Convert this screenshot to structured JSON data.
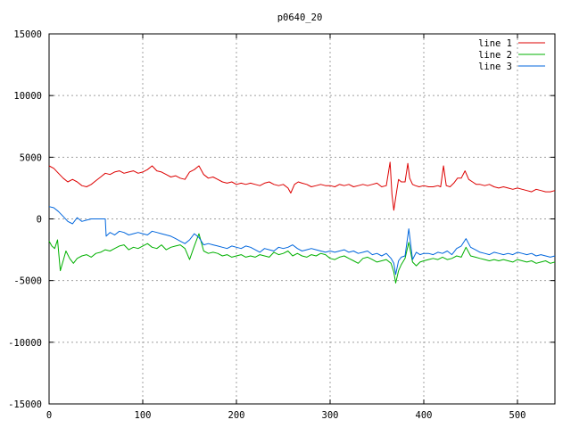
{
  "chart_data": {
    "type": "line",
    "title": "p0640_20",
    "xlabel": "",
    "ylabel": "",
    "xlim": [
      0,
      540
    ],
    "ylim": [
      -15000,
      15000
    ],
    "xticks": [
      0,
      100,
      200,
      300,
      400,
      500
    ],
    "yticks": [
      -15000,
      -10000,
      -5000,
      0,
      5000,
      10000,
      15000
    ],
    "grid": true,
    "legend_position": "top-right",
    "series": [
      {
        "name": "line 1",
        "color": "#dd0000",
        "x": [
          0,
          5,
          10,
          15,
          20,
          25,
          30,
          35,
          40,
          45,
          50,
          55,
          60,
          65,
          70,
          75,
          80,
          85,
          90,
          95,
          100,
          105,
          110,
          115,
          120,
          125,
          130,
          135,
          140,
          145,
          150,
          155,
          160,
          165,
          170,
          175,
          180,
          185,
          190,
          195,
          200,
          205,
          210,
          215,
          220,
          225,
          230,
          235,
          240,
          245,
          250,
          255,
          258,
          262,
          266,
          270,
          275,
          280,
          285,
          290,
          295,
          300,
          305,
          310,
          315,
          320,
          325,
          330,
          335,
          340,
          345,
          350,
          355,
          360,
          364,
          366,
          368,
          371,
          373,
          376,
          380,
          383,
          385,
          388,
          391,
          395,
          400,
          405,
          410,
          415,
          418,
          421,
          424,
          428,
          432,
          436,
          440,
          444,
          448,
          452,
          456,
          460,
          465,
          470,
          475,
          480,
          485,
          490,
          495,
          500,
          505,
          510,
          515,
          520,
          525,
          530,
          535,
          540
        ],
        "values": [
          4300,
          4100,
          3700,
          3300,
          3000,
          3200,
          3000,
          2700,
          2600,
          2800,
          3100,
          3400,
          3700,
          3600,
          3800,
          3900,
          3700,
          3800,
          3900,
          3700,
          3800,
          4000,
          4300,
          3900,
          3800,
          3600,
          3400,
          3500,
          3300,
          3200,
          3800,
          4000,
          4300,
          3600,
          3300,
          3400,
          3200,
          3000,
          2900,
          3000,
          2800,
          2900,
          2800,
          2900,
          2800,
          2700,
          2900,
          3000,
          2800,
          2700,
          2800,
          2500,
          2100,
          2800,
          3000,
          2900,
          2800,
          2600,
          2700,
          2800,
          2700,
          2700,
          2600,
          2800,
          2700,
          2800,
          2600,
          2700,
          2800,
          2700,
          2800,
          2900,
          2600,
          2700,
          4600,
          2000,
          700,
          2200,
          3200,
          3000,
          3000,
          4500,
          3300,
          2800,
          2700,
          2600,
          2700,
          2600,
          2600,
          2700,
          2600,
          4300,
          2700,
          2600,
          2900,
          3300,
          3300,
          3900,
          3200,
          3000,
          2800,
          2800,
          2700,
          2800,
          2600,
          2500,
          2600,
          2500,
          2400,
          2500,
          2400,
          2300,
          2200,
          2400,
          2300,
          2200,
          2200,
          2300
        ]
      },
      {
        "name": "line 2",
        "color": "#00b000",
        "x": [
          0,
          3,
          6,
          9,
          12,
          15,
          18,
          22,
          26,
          30,
          35,
          40,
          45,
          50,
          55,
          60,
          65,
          70,
          75,
          80,
          85,
          90,
          95,
          100,
          105,
          110,
          115,
          120,
          125,
          130,
          135,
          140,
          145,
          150,
          155,
          160,
          165,
          170,
          175,
          180,
          185,
          190,
          195,
          200,
          205,
          210,
          215,
          220,
          225,
          230,
          235,
          240,
          245,
          250,
          255,
          260,
          265,
          270,
          275,
          280,
          285,
          290,
          295,
          300,
          305,
          310,
          315,
          320,
          325,
          330,
          335,
          340,
          345,
          350,
          355,
          360,
          365,
          368,
          370,
          373,
          376,
          380,
          384,
          388,
          392,
          396,
          400,
          405,
          410,
          415,
          420,
          425,
          430,
          435,
          440,
          445,
          450,
          455,
          460,
          465,
          470,
          475,
          480,
          485,
          490,
          495,
          500,
          505,
          510,
          515,
          520,
          525,
          530,
          535,
          540
        ],
        "values": [
          -1800,
          -2200,
          -2400,
          -1700,
          -4200,
          -3400,
          -2600,
          -3200,
          -3600,
          -3200,
          -3000,
          -2900,
          -3100,
          -2800,
          -2700,
          -2500,
          -2600,
          -2400,
          -2200,
          -2100,
          -2500,
          -2300,
          -2400,
          -2200,
          -2000,
          -2300,
          -2400,
          -2100,
          -2500,
          -2300,
          -2200,
          -2100,
          -2400,
          -3300,
          -2200,
          -1200,
          -2600,
          -2800,
          -2700,
          -2800,
          -3000,
          -2900,
          -3100,
          -3000,
          -2900,
          -3100,
          -3000,
          -3100,
          -2900,
          -3000,
          -3100,
          -2700,
          -2900,
          -2800,
          -2600,
          -3000,
          -2800,
          -3000,
          -3100,
          -2900,
          -3000,
          -2800,
          -2900,
          -3200,
          -3300,
          -3100,
          -3000,
          -3200,
          -3400,
          -3600,
          -3200,
          -3100,
          -3300,
          -3500,
          -3400,
          -3300,
          -3600,
          -4300,
          -5200,
          -4200,
          -3700,
          -3200,
          -1900,
          -3500,
          -3800,
          -3500,
          -3400,
          -3300,
          -3200,
          -3300,
          -3100,
          -3300,
          -3200,
          -3000,
          -3100,
          -2300,
          -3000,
          -3100,
          -3200,
          -3300,
          -3400,
          -3300,
          -3400,
          -3300,
          -3400,
          -3500,
          -3300,
          -3400,
          -3500,
          -3400,
          -3600,
          -3500,
          -3400,
          -3600,
          -3500
        ]
      },
      {
        "name": "line 3",
        "color": "#0066dd",
        "x": [
          0,
          5,
          10,
          15,
          20,
          25,
          30,
          35,
          40,
          45,
          50,
          55,
          60,
          61,
          65,
          70,
          75,
          80,
          85,
          90,
          95,
          100,
          105,
          110,
          115,
          120,
          125,
          130,
          135,
          140,
          145,
          150,
          155,
          160,
          165,
          170,
          175,
          180,
          185,
          190,
          195,
          200,
          205,
          210,
          215,
          220,
          225,
          230,
          235,
          240,
          245,
          250,
          255,
          260,
          265,
          270,
          275,
          280,
          285,
          290,
          295,
          300,
          305,
          310,
          315,
          320,
          325,
          330,
          335,
          340,
          345,
          350,
          355,
          360,
          365,
          368,
          370,
          373,
          376,
          380,
          384,
          388,
          392,
          396,
          400,
          405,
          410,
          415,
          420,
          425,
          430,
          435,
          440,
          445,
          450,
          455,
          460,
          465,
          470,
          475,
          480,
          485,
          490,
          495,
          500,
          505,
          510,
          515,
          520,
          525,
          530,
          535,
          540
        ],
        "values": [
          1000,
          900,
          600,
          200,
          -200,
          -400,
          100,
          -200,
          -100,
          0,
          0,
          0,
          0,
          -1400,
          -1100,
          -1300,
          -1000,
          -1100,
          -1300,
          -1200,
          -1100,
          -1200,
          -1300,
          -1000,
          -1100,
          -1200,
          -1300,
          -1400,
          -1600,
          -1800,
          -2000,
          -1700,
          -1200,
          -1500,
          -2100,
          -2000,
          -2100,
          -2200,
          -2300,
          -2400,
          -2200,
          -2300,
          -2400,
          -2200,
          -2300,
          -2500,
          -2700,
          -2400,
          -2500,
          -2600,
          -2300,
          -2400,
          -2300,
          -2100,
          -2400,
          -2600,
          -2500,
          -2400,
          -2500,
          -2600,
          -2700,
          -2600,
          -2700,
          -2600,
          -2500,
          -2700,
          -2600,
          -2800,
          -2700,
          -2600,
          -2900,
          -2800,
          -3000,
          -2800,
          -3200,
          -3600,
          -4500,
          -3400,
          -3100,
          -3000,
          -800,
          -3300,
          -2700,
          -2900,
          -2800,
          -2800,
          -2900,
          -2700,
          -2800,
          -2600,
          -2900,
          -2400,
          -2200,
          -1600,
          -2300,
          -2500,
          -2700,
          -2800,
          -2900,
          -2700,
          -2800,
          -2900,
          -2800,
          -2900,
          -2700,
          -2800,
          -2900,
          -2800,
          -3000,
          -2900,
          -3000,
          -3100,
          -3000
        ]
      }
    ]
  }
}
